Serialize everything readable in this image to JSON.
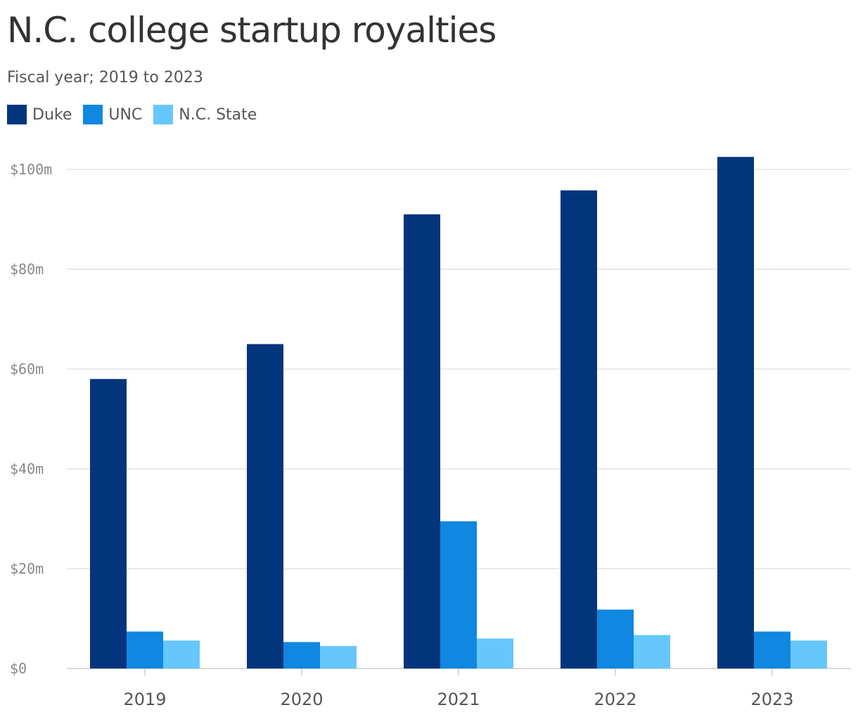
{
  "chart_data": {
    "type": "bar",
    "title": "N.C. college startup royalties",
    "subtitle": "Fiscal year; 2019 to 2023",
    "categories": [
      "2019",
      "2020",
      "2021",
      "2022",
      "2023"
    ],
    "series": [
      {
        "name": "Duke",
        "color": "#03357d",
        "values": [
          58,
          65,
          91,
          95.8,
          102.5
        ]
      },
      {
        "name": "UNC",
        "color": "#1087e0",
        "values": [
          7.4,
          5.3,
          29.5,
          11.8,
          7.4
        ]
      },
      {
        "name": "N.C. State",
        "color": "#66c7ff",
        "values": [
          5.6,
          4.5,
          6,
          6.7,
          5.6
        ]
      }
    ],
    "ylim": [
      0,
      100
    ],
    "yticks": [
      0,
      20,
      40,
      60,
      80,
      100
    ],
    "ytick_labels": [
      "$0",
      "$20m",
      "$40m",
      "$60m",
      "$80m",
      "$100m"
    ],
    "grid": true,
    "legend_position": "top-left",
    "xlabel": "",
    "ylabel": ""
  }
}
